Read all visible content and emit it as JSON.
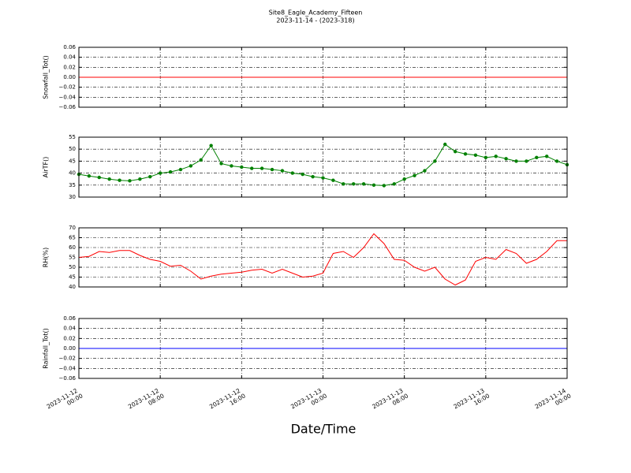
{
  "title": "Site8_Eagle_Academy_Fifteen",
  "subtitle": "2023-11-14 - (2023-318)",
  "xlabel": "Date/Time",
  "chart_data": [
    {
      "type": "line",
      "ylabel": "Snowfall_Tot()",
      "color": "#ff0000",
      "markers": false,
      "x": [
        "2023-11-12 00:00",
        "2023-11-14 00:00"
      ],
      "values": [
        0,
        0
      ],
      "xlim": [
        "2023-11-12 00:00",
        "2023-11-14 00:00"
      ],
      "xticks": [
        "2023-11-12 00:00",
        "2023-11-12 08:00",
        "2023-11-12 16:00",
        "2023-11-13 00:00",
        "2023-11-13 08:00",
        "2023-11-13 16:00",
        "2023-11-14 00:00"
      ],
      "ylim": [
        -0.06,
        0.06
      ],
      "yticks": [
        {
          "value": -0.06,
          "label": "−0.06"
        },
        {
          "value": -0.04,
          "label": "−0.04"
        },
        {
          "value": -0.02,
          "label": "−0.02"
        },
        {
          "value": 0,
          "label": "0.00"
        },
        0.02,
        0.04,
        0.06
      ],
      "grid": true
    },
    {
      "type": "line",
      "ylabel": "AirTF()",
      "color": "#008000",
      "markers": true,
      "x": [
        "2023-11-12 00:00",
        "2023-11-12 01:00",
        "2023-11-12 02:00",
        "2023-11-12 03:00",
        "2023-11-12 04:00",
        "2023-11-12 05:00",
        "2023-11-12 06:00",
        "2023-11-12 07:00",
        "2023-11-12 08:00",
        "2023-11-12 09:00",
        "2023-11-12 10:00",
        "2023-11-12 11:00",
        "2023-11-12 12:00",
        "2023-11-12 13:00",
        "2023-11-12 14:00",
        "2023-11-12 15:00",
        "2023-11-12 16:00",
        "2023-11-12 17:00",
        "2023-11-12 18:00",
        "2023-11-12 19:00",
        "2023-11-12 20:00",
        "2023-11-12 21:00",
        "2023-11-12 22:00",
        "2023-11-12 23:00",
        "2023-11-13 00:00",
        "2023-11-13 01:00",
        "2023-11-13 02:00",
        "2023-11-13 03:00",
        "2023-11-13 04:00",
        "2023-11-13 05:00",
        "2023-11-13 06:00",
        "2023-11-13 07:00",
        "2023-11-13 08:00",
        "2023-11-13 09:00",
        "2023-11-13 10:00",
        "2023-11-13 11:00",
        "2023-11-13 12:00",
        "2023-11-13 13:00",
        "2023-11-13 14:00",
        "2023-11-13 15:00",
        "2023-11-13 16:00",
        "2023-11-13 17:00",
        "2023-11-13 18:00",
        "2023-11-13 19:00",
        "2023-11-13 20:00",
        "2023-11-13 21:00",
        "2023-11-13 22:00",
        "2023-11-13 23:00",
        "2023-11-14 00:00"
      ],
      "values": [
        39.5,
        38.8,
        38.2,
        37.5,
        37,
        36.8,
        37.5,
        38.5,
        40,
        40.5,
        41.5,
        43,
        45.5,
        51.5,
        44,
        43,
        42.5,
        42,
        42,
        41.5,
        41,
        40,
        39.5,
        38.5,
        38,
        37,
        35.5,
        35.5,
        35.5,
        35,
        34.8,
        35.5,
        37.5,
        39,
        41,
        45,
        52,
        49,
        48,
        47.5,
        46.5,
        47,
        46,
        45,
        45,
        46.5,
        47,
        45,
        43.5
      ],
      "xlim": [
        "2023-11-12 00:00",
        "2023-11-14 00:00"
      ],
      "xticks": [
        "2023-11-12 00:00",
        "2023-11-12 08:00",
        "2023-11-12 16:00",
        "2023-11-13 00:00",
        "2023-11-13 08:00",
        "2023-11-13 16:00",
        "2023-11-14 00:00"
      ],
      "ylim": [
        30,
        55
      ],
      "yticks": [
        30,
        35,
        40,
        45,
        50,
        55
      ],
      "grid": true
    },
    {
      "type": "line",
      "ylabel": "RH(%)",
      "color": "#ff0000",
      "markers": false,
      "x": [
        "2023-11-12 00:00",
        "2023-11-12 01:00",
        "2023-11-12 02:00",
        "2023-11-12 03:00",
        "2023-11-12 04:00",
        "2023-11-12 05:00",
        "2023-11-12 06:00",
        "2023-11-12 07:00",
        "2023-11-12 08:00",
        "2023-11-12 09:00",
        "2023-11-12 10:00",
        "2023-11-12 11:00",
        "2023-11-12 12:00",
        "2023-11-12 13:00",
        "2023-11-12 14:00",
        "2023-11-12 15:00",
        "2023-11-12 16:00",
        "2023-11-12 17:00",
        "2023-11-12 18:00",
        "2023-11-12 19:00",
        "2023-11-12 20:00",
        "2023-11-12 21:00",
        "2023-11-12 22:00",
        "2023-11-12 23:00",
        "2023-11-13 00:00",
        "2023-11-13 01:00",
        "2023-11-13 02:00",
        "2023-11-13 03:00",
        "2023-11-13 04:00",
        "2023-11-13 05:00",
        "2023-11-13 06:00",
        "2023-11-13 07:00",
        "2023-11-13 08:00",
        "2023-11-13 09:00",
        "2023-11-13 10:00",
        "2023-11-13 11:00",
        "2023-11-13 12:00",
        "2023-11-13 13:00",
        "2023-11-13 14:00",
        "2023-11-13 15:00",
        "2023-11-13 16:00",
        "2023-11-13 17:00",
        "2023-11-13 18:00",
        "2023-11-13 19:00",
        "2023-11-13 20:00",
        "2023-11-13 21:00",
        "2023-11-13 22:00",
        "2023-11-13 23:00",
        "2023-11-14 00:00"
      ],
      "values": [
        55,
        55.5,
        58,
        57.5,
        58.5,
        58.5,
        56,
        54,
        53,
        50.5,
        51,
        48,
        44,
        45.5,
        46.5,
        47,
        47.5,
        48.5,
        49,
        47,
        49,
        47,
        45,
        45.5,
        47,
        57,
        58,
        55,
        60,
        67,
        62,
        54,
        53.5,
        50,
        48,
        50,
        44,
        41,
        43.5,
        53,
        55,
        54,
        59,
        57,
        52,
        54,
        58,
        63.5,
        63.5
      ],
      "xlim": [
        "2023-11-12 00:00",
        "2023-11-14 00:00"
      ],
      "xticks": [
        "2023-11-12 00:00",
        "2023-11-12 08:00",
        "2023-11-12 16:00",
        "2023-11-13 00:00",
        "2023-11-13 08:00",
        "2023-11-13 16:00",
        "2023-11-14 00:00"
      ],
      "ylim": [
        40,
        70
      ],
      "yticks": [
        40,
        45,
        50,
        55,
        60,
        65,
        70
      ],
      "grid": true
    },
    {
      "type": "line",
      "ylabel": "Rainfall_Tot()",
      "color": "#0000ff",
      "markers": false,
      "x": [
        "2023-11-12 00:00",
        "2023-11-14 00:00"
      ],
      "values": [
        0,
        0
      ],
      "xlim": [
        "2023-11-12 00:00",
        "2023-11-14 00:00"
      ],
      "xticks": [
        "2023-11-12 00:00",
        "2023-11-12 08:00",
        "2023-11-12 16:00",
        "2023-11-13 00:00",
        "2023-11-13 08:00",
        "2023-11-13 16:00",
        "2023-11-14 00:00"
      ],
      "xtick_labels": true,
      "ylim": [
        -0.06,
        0.06
      ],
      "yticks": [
        {
          "value": -0.06,
          "label": "−0.06"
        },
        {
          "value": -0.04,
          "label": "−0.04"
        },
        {
          "value": -0.02,
          "label": "−0.02"
        },
        {
          "value": 0,
          "label": "0.00"
        },
        0.02,
        0.04,
        0.06
      ],
      "grid": true
    }
  ]
}
